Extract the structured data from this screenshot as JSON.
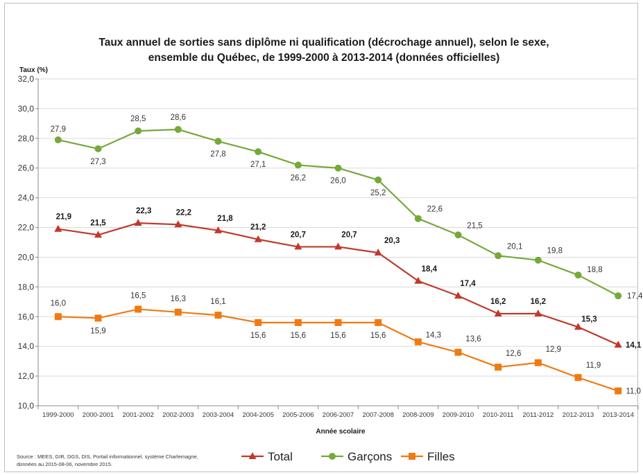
{
  "chart_data": {
    "type": "line",
    "title_line1": "Taux annuel de sorties sans diplôme ni qualification (décrochage annuel), selon le sexe,",
    "title_line2": "ensemble du Québec, de 1999-2000 à 2013-2014  (données officielles)",
    "ylabel": "Taux (%)",
    "xlabel": "Année scolaire",
    "ylim": [
      10,
      32
    ],
    "yticks": [
      "10,0",
      "12,0",
      "14,0",
      "16,0",
      "18,0",
      "20,0",
      "22,0",
      "24,0",
      "26,0",
      "28,0",
      "30,0",
      "32,0"
    ],
    "grid": true,
    "legend_position": "bottom",
    "categories": [
      "1999-2000",
      "2000-2001",
      "2001-2002",
      "2002-2003",
      "2003-2004",
      "2004-2005",
      "2005-2006",
      "2006-2007",
      "2007-2008",
      "2008-2009",
      "2009-2010",
      "2010-2011",
      "2011-2012",
      "2012-2013",
      "2013-2014"
    ],
    "series": [
      {
        "name": "Total",
        "color": "#c0392b",
        "marker": "triangle",
        "values": [
          21.9,
          21.5,
          22.3,
          22.2,
          21.8,
          21.2,
          20.7,
          20.7,
          20.3,
          18.4,
          17.4,
          16.2,
          16.2,
          15.3,
          14.1
        ],
        "labels": [
          "21,9",
          "21,5",
          "22,3",
          "22,2",
          "21,8",
          "21,2",
          "20,7",
          "20,7",
          "20,3",
          "18,4",
          "17,4",
          "16,2",
          "16,2",
          "15,3",
          "14,1"
        ]
      },
      {
        "name": "Garçons",
        "color": "#76a83a",
        "marker": "circle",
        "values": [
          27.9,
          27.3,
          28.5,
          28.6,
          27.8,
          27.1,
          26.2,
          26.0,
          25.2,
          22.6,
          21.5,
          20.1,
          19.8,
          18.8,
          17.4
        ],
        "labels": [
          "27,9",
          "27,3",
          "28,5",
          "28,6",
          "27,8",
          "27,1",
          "26,2",
          "26,0",
          "25,2",
          "22,6",
          "21,5",
          "20,1",
          "19,8",
          "18,8",
          "17,4"
        ]
      },
      {
        "name": "Filles",
        "color": "#f07a12",
        "marker": "square",
        "values": [
          16.0,
          15.9,
          16.5,
          16.3,
          16.1,
          15.6,
          15.6,
          15.6,
          15.6,
          14.3,
          13.6,
          12.6,
          12.9,
          11.9,
          11.0
        ],
        "labels": [
          "16,0",
          "15,9",
          "16,5",
          "16,3",
          "16,1",
          "15,6",
          "15,6",
          "15,6",
          "15,6",
          "14,3",
          "13,6",
          "12,6",
          "12,9",
          "11,9",
          "11,0"
        ]
      }
    ],
    "source_line1": "Source :  MEES, GIR, DGS, DIS, Portail informationnel, système Charlemagne,",
    "source_line2": "données au 2015-08-06, novembre 2015."
  }
}
